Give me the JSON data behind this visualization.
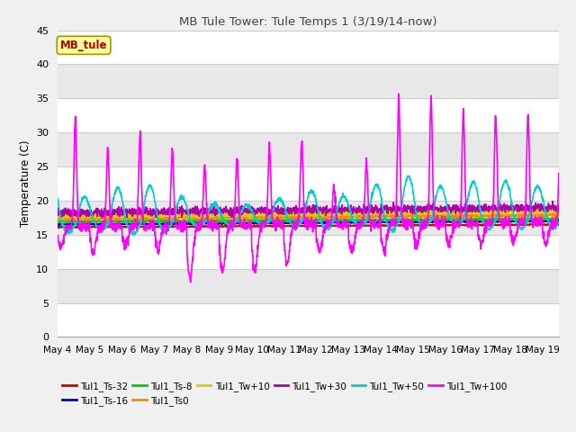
{
  "title": "MB Tule Tower: Tule Temps 1 (3/19/14-now)",
  "ylabel": "Temperature (C)",
  "xlim_days": [
    0,
    15.5
  ],
  "ylim": [
    0,
    45
  ],
  "yticks": [
    0,
    5,
    10,
    15,
    20,
    25,
    30,
    35,
    40,
    45
  ],
  "xtick_labels": [
    "May 4",
    "May 5",
    "May 6",
    "May 7",
    "May 8",
    "May 9",
    "May 10",
    "May 11",
    "May 12",
    "May 13",
    "May 14",
    "May 15",
    "May 16",
    "May 17",
    "May 18",
    "May 19"
  ],
  "legend_box_label": "MB_tule",
  "fig_bg": "#f0f0f0",
  "plot_bg": "#e8e8e8",
  "grid_band_light": "#e8e8e8",
  "grid_band_dark": "#d8d8d8",
  "series": {
    "Tul1_Ts-32": {
      "color": "#cc0000",
      "lw": 1.2,
      "zorder": 5
    },
    "Tul1_Ts-16": {
      "color": "#0000cc",
      "lw": 1.2,
      "zorder": 5
    },
    "Tul1_Ts-8": {
      "color": "#00cc00",
      "lw": 1.2,
      "zorder": 5
    },
    "Tul1_Ts0": {
      "color": "#ff8800",
      "lw": 1.2,
      "zorder": 5
    },
    "Tul1_Tw+10": {
      "color": "#ddcc00",
      "lw": 1.2,
      "zorder": 5
    },
    "Tul1_Tw+30": {
      "color": "#aa00aa",
      "lw": 1.2,
      "zorder": 5
    },
    "Tul1_Tw+50": {
      "color": "#00cccc",
      "lw": 1.2,
      "zorder": 6
    },
    "Tul1_Tw+100": {
      "color": "#ff00ff",
      "lw": 1.2,
      "zorder": 7
    }
  },
  "legend_order": [
    [
      "Tul1_Ts-32",
      "#cc0000"
    ],
    [
      "Tul1_Ts-16",
      "#0000cc"
    ],
    [
      "Tul1_Ts-8",
      "#00cc00"
    ],
    [
      "Tul1_Ts0",
      "#ff8800"
    ],
    [
      "Tul1_Tw+10",
      "#ddcc00"
    ],
    [
      "Tul1_Tw+30",
      "#aa00aa"
    ],
    [
      "Tul1_Tw+50",
      "#00cccc"
    ],
    [
      "Tul1_Tw+100",
      "#ff00ff"
    ]
  ]
}
